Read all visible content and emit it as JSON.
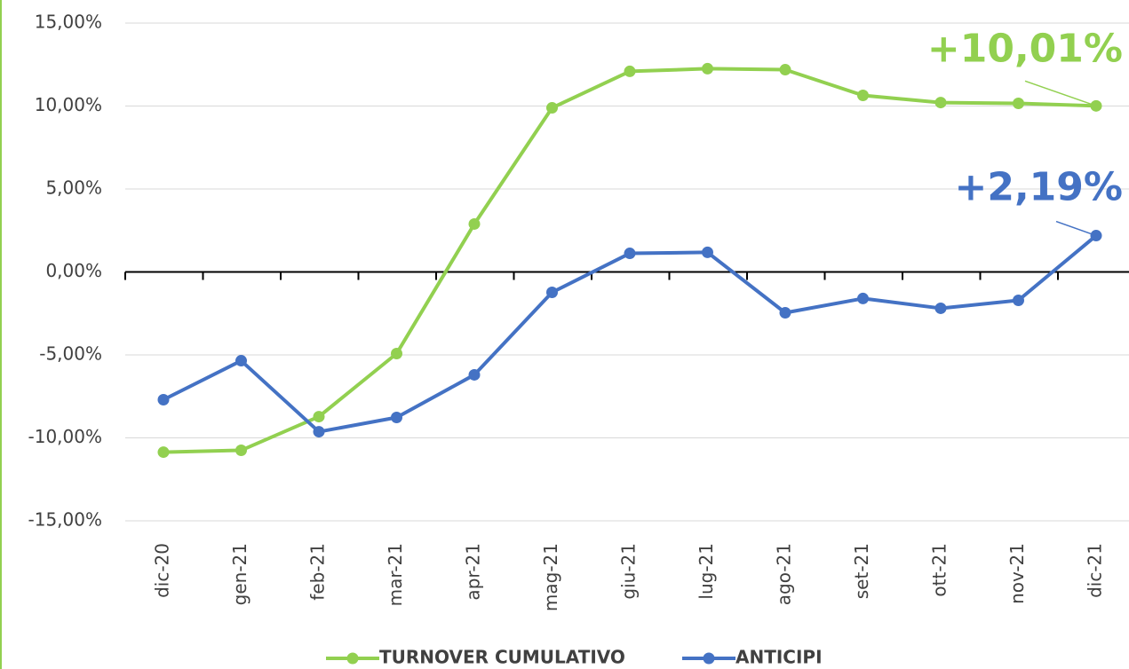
{
  "chart_data": {
    "type": "line",
    "categories": [
      "dic-20",
      "gen-21",
      "feb-21",
      "mar-21",
      "apr-21",
      "mag-21",
      "giu-21",
      "lug-21",
      "ago-21",
      "set-21",
      "ott-21",
      "nov-21",
      "dic-21"
    ],
    "series": [
      {
        "name": "TURNOVER CUMULATIVO",
        "color": "#92d050",
        "values": [
          -10.86,
          -10.75,
          -8.72,
          -4.92,
          2.89,
          9.89,
          12.09,
          12.25,
          12.19,
          10.64,
          10.21,
          10.16,
          10.01
        ],
        "value_labels": [
          null,
          null,
          null,
          null,
          null,
          null,
          null,
          null,
          null,
          null,
          null,
          null,
          "+10,01%"
        ]
      },
      {
        "name": "ANTICIPI",
        "color": "#4472c4",
        "values": [
          -7.7,
          -5.35,
          -9.63,
          -8.77,
          -6.2,
          -1.23,
          1.12,
          1.18,
          -2.46,
          -1.6,
          -2.19,
          -1.71,
          2.19
        ],
        "value_labels": [
          null,
          null,
          null,
          null,
          null,
          null,
          null,
          null,
          null,
          null,
          null,
          null,
          "+2,19%"
        ]
      }
    ],
    "ylim": [
      -15,
      15
    ],
    "yticks": [
      {
        "value": -15,
        "label": "-15,00%"
      },
      {
        "value": -10,
        "label": "-10,00%"
      },
      {
        "value": -5,
        "label": "-5,00%"
      },
      {
        "value": 0,
        "label": "0,00%"
      },
      {
        "value": 5,
        "label": "5,00%"
      },
      {
        "value": 10,
        "label": "10,00%"
      },
      {
        "value": 15,
        "label": "15,00%"
      }
    ],
    "grid": true
  }
}
